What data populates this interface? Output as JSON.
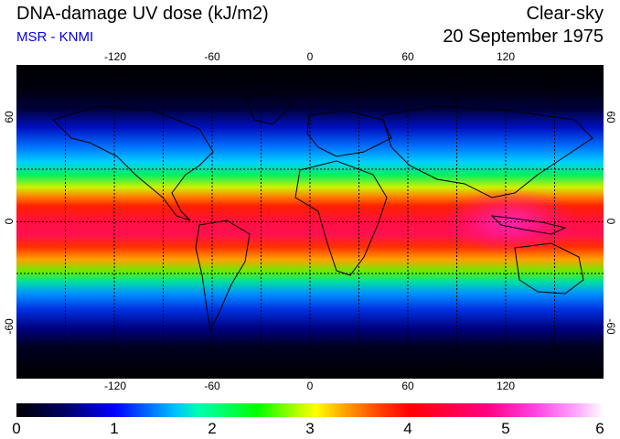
{
  "header": {
    "title": "DNA-damage UV dose (kJ/m2)",
    "source": "MSR - KNMI",
    "condition": "Clear-sky",
    "date": "20 September 1975"
  },
  "map": {
    "longitude_ticks": [
      "-120",
      "-60",
      "0",
      "60",
      "120"
    ],
    "latitude_ticks": [
      "60",
      "0",
      "-60"
    ],
    "projection": "equirectangular",
    "grid_lines": "dotted",
    "peak_region": "Indonesia / western Pacific"
  },
  "colorbar": {
    "labels": [
      "0",
      "1",
      "2",
      "3",
      "4",
      "5",
      "6"
    ],
    "min": 0,
    "max": 6,
    "colors": [
      "#000000",
      "#0000ff",
      "#00ffff",
      "#00ff00",
      "#ffff00",
      "#ff0000",
      "#ff00ff",
      "#ffffff"
    ]
  },
  "colors": {
    "title_text": "#000000",
    "source_text": "#0000ee"
  }
}
